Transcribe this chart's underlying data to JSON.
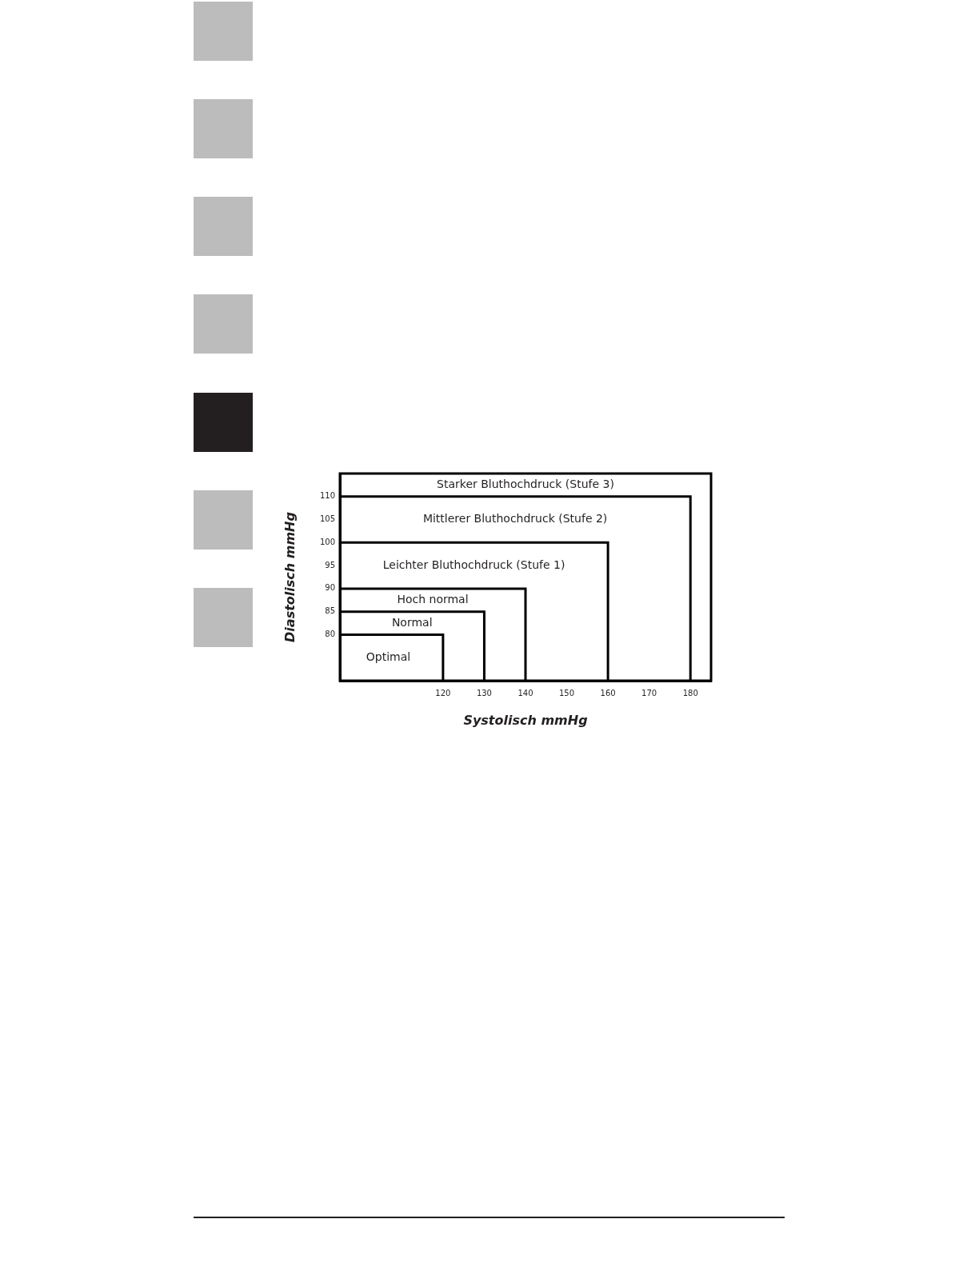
{
  "chart_data": {
    "type": "line",
    "xlabel": "Systolisch mmHg",
    "ylabel": "Diastolisch mmHg",
    "xlim": [
      95,
      185
    ],
    "ylim": [
      70,
      115
    ],
    "xticks": [
      120,
      130,
      140,
      150,
      160,
      170,
      180
    ],
    "yticks": [
      80,
      85,
      90,
      95,
      100,
      105,
      110
    ],
    "grid": false,
    "legend": false,
    "marker": "none",
    "line_style": "solid",
    "series": [
      {
        "color": "#000000",
        "x": [
          95,
          120,
          120
        ],
        "values": [
          80,
          80,
          70
        ]
      },
      {
        "color": "#000000",
        "x": [
          95,
          130,
          130
        ],
        "values": [
          85,
          85,
          70
        ]
      },
      {
        "color": "#000000",
        "x": [
          95,
          140,
          140
        ],
        "values": [
          90,
          90,
          70
        ]
      },
      {
        "color": "#000000",
        "x": [
          95,
          160,
          160
        ],
        "values": [
          100,
          100,
          70
        ]
      },
      {
        "color": "#000000",
        "x": [
          95,
          180,
          180
        ],
        "values": [
          110,
          110,
          70
        ]
      }
    ],
    "annotations": [
      "Optimal",
      "Normal",
      "Hoch normal",
      "Leichter Bluthochdruck (Stufe 1)",
      "Mittlerer Bluthochdruck (Stufe 2)",
      "Starker Bluthochdruck (Stufe 3)"
    ]
  }
}
